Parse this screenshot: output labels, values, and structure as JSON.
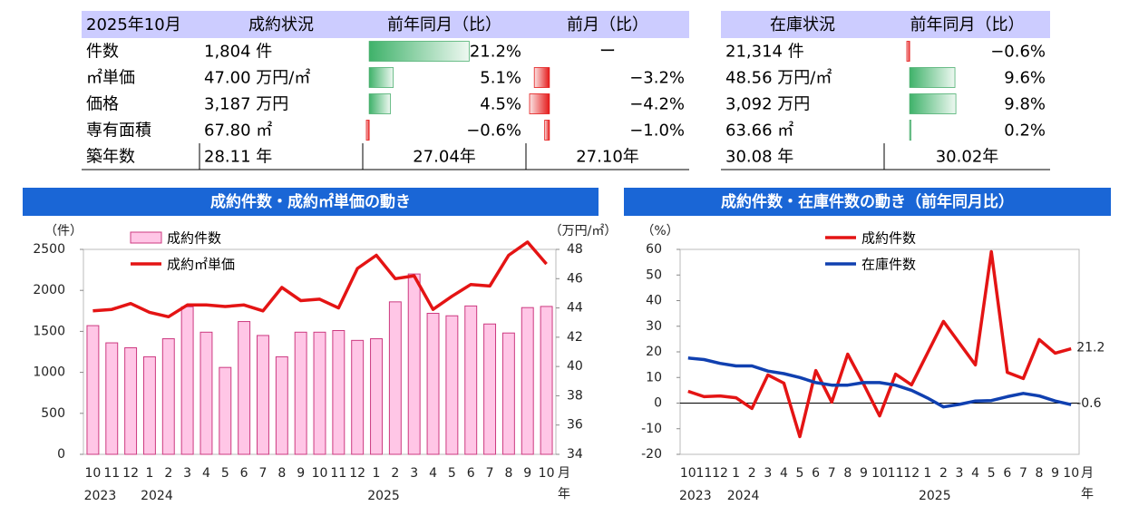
{
  "tables": [
    {
      "header": [
        "2025年10月",
        "成約状況",
        "前年同月（比）",
        "前月（比）"
      ],
      "rows": [
        [
          "件数",
          "1,804 件",
          {
            "value": 21.2,
            "label": "21.2%"
          },
          "ー"
        ],
        [
          "㎡単価",
          "47.00 万円/㎡",
          {
            "value": 5.1,
            "label": "5.1%"
          },
          {
            "value": -3.2,
            "label": "−3.2%"
          }
        ],
        [
          "価格",
          "3,187 万円",
          {
            "value": 4.5,
            "label": "4.5%"
          },
          {
            "value": -4.2,
            "label": "−4.2%"
          }
        ],
        [
          "専有面積",
          "67.80 ㎡",
          {
            "value": -0.6,
            "label": "−0.6%"
          },
          {
            "value": -1.0,
            "label": "−1.0%"
          }
        ],
        [
          "築年数",
          "28.11 年",
          "27.04年",
          "27.10年"
        ]
      ]
    },
    {
      "header": [
        "在庫状況",
        "前年同月（比）"
      ],
      "rows": [
        [
          "21,314 件",
          {
            "value": -0.6,
            "label": "−0.6%"
          }
        ],
        [
          "48.56 万円/㎡",
          {
            "value": 9.6,
            "label": "9.6%"
          }
        ],
        [
          "3,092 万円",
          {
            "value": 9.8,
            "label": "9.8%"
          }
        ],
        [
          "63.66 ㎡",
          {
            "value": 0.2,
            "label": "0.2%"
          }
        ],
        [
          "30.08 年",
          "30.02年"
        ]
      ]
    }
  ],
  "chart_data": [
    {
      "type": "bar_line",
      "title": "成約件数・成約㎡単価の動き",
      "categories": [
        "10",
        "11",
        "12",
        "1",
        "2",
        "3",
        "4",
        "5",
        "6",
        "7",
        "8",
        "9",
        "10",
        "11",
        "12",
        "1",
        "2",
        "3",
        "4",
        "5",
        "6",
        "7",
        "8",
        "9",
        "10"
      ],
      "years": [
        "2023",
        null,
        null,
        "2024",
        null,
        null,
        null,
        null,
        null,
        null,
        null,
        null,
        null,
        null,
        null,
        "2025",
        null,
        null,
        null,
        null,
        null,
        null,
        null,
        null,
        null
      ],
      "xlabel": "月",
      "year_label": "年",
      "ylabel": "（件）",
      "y2label": "（万円/㎡）",
      "ylim": [
        0,
        2500
      ],
      "yticks": [
        0,
        500,
        1000,
        1500,
        2000,
        2500
      ],
      "y2lim": [
        34,
        48
      ],
      "y2ticks": [
        34,
        36,
        38,
        40,
        42,
        44,
        46,
        48
      ],
      "legend": "top-left",
      "grid": false,
      "series": [
        {
          "name": "成約件数",
          "type": "bar",
          "color": "#ffc6e6",
          "border": "#cc3a80",
          "values": [
            1570,
            1360,
            1300,
            1190,
            1410,
            1800,
            1490,
            1060,
            1620,
            1450,
            1190,
            1490,
            1490,
            1510,
            1390,
            1410,
            1860,
            2200,
            1720,
            1690,
            1810,
            1590,
            1480,
            1790,
            1804
          ]
        },
        {
          "name": "成約㎡単価",
          "type": "line",
          "color": "#e41414",
          "axis": "y2",
          "values": [
            43.8,
            43.9,
            44.3,
            43.7,
            43.4,
            44.2,
            44.2,
            44.1,
            44.2,
            43.8,
            45.4,
            44.5,
            44.6,
            44.0,
            46.7,
            47.6,
            46.0,
            46.2,
            43.9,
            44.8,
            45.6,
            45.5,
            47.6,
            48.5,
            47.0
          ]
        }
      ]
    },
    {
      "type": "line",
      "title": "成約件数・在庫件数の動き（前年同月比）",
      "categories": [
        "10",
        "11",
        "12",
        "1",
        "2",
        "3",
        "4",
        "5",
        "6",
        "7",
        "8",
        "9",
        "10",
        "11",
        "12",
        "1",
        "2",
        "3",
        "4",
        "5",
        "6",
        "7",
        "8",
        "9",
        "10"
      ],
      "years": [
        "2023",
        null,
        null,
        "2024",
        null,
        null,
        null,
        null,
        null,
        null,
        null,
        null,
        null,
        null,
        null,
        "2025",
        null,
        null,
        null,
        null,
        null,
        null,
        null,
        null,
        null
      ],
      "xlabel": "月",
      "year_label": "年",
      "ylabel": "（%）",
      "ylim": [
        -20,
        60
      ],
      "yticks": [
        -20,
        -10,
        0,
        10,
        20,
        30,
        40,
        50,
        60
      ],
      "legend": "top-center",
      "grid": false,
      "zero_line": true,
      "end_labels": true,
      "series": [
        {
          "name": "成約件数",
          "type": "line",
          "color": "#e41414",
          "label_color": "#444444",
          "values": [
            4.6,
            2.5,
            2.8,
            2.1,
            -2.1,
            11.0,
            7.8,
            -13.1,
            12.7,
            0.4,
            19.1,
            7.4,
            -5.0,
            11.3,
            7.1,
            19.5,
            31.9,
            23.4,
            14.9,
            59.1,
            12.0,
            9.6,
            24.8,
            19.5,
            21.2
          ]
        },
        {
          "name": "在庫件数",
          "type": "line",
          "color": "#1040b0",
          "label_color": "#1040b0",
          "values": [
            17.6,
            17.0,
            15.5,
            14.5,
            14.5,
            12.5,
            11.5,
            10.0,
            8.0,
            7.0,
            7.0,
            8.0,
            8.0,
            7.0,
            5.0,
            2.0,
            -1.5,
            -0.5,
            0.8,
            1.0,
            2.5,
            3.8,
            2.8,
            0.8,
            -0.6
          ]
        }
      ]
    }
  ]
}
